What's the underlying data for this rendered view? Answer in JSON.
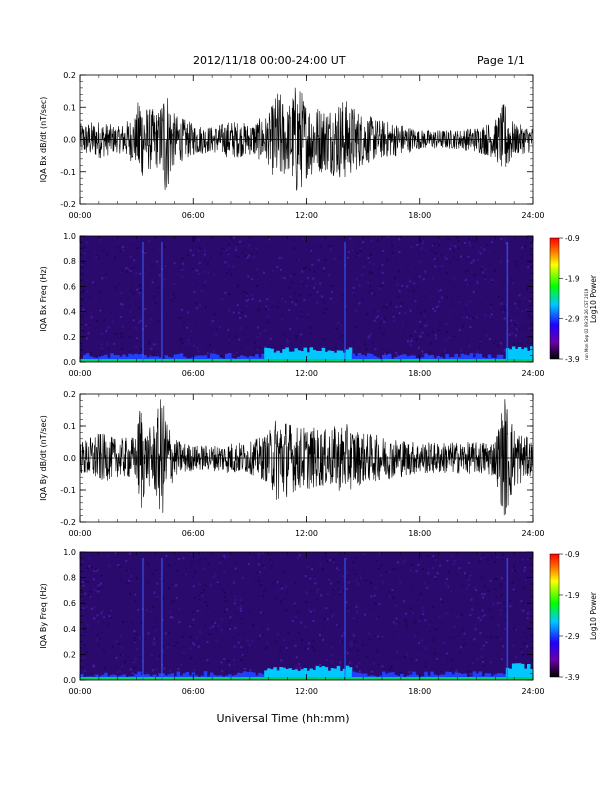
{
  "header": {
    "title": "2012/11/18  00:00-24:00 UT",
    "page": "Page 1/1"
  },
  "side_note": "run Mon Sep 02 09:29:26 CST 2019",
  "xaxis_label": "Universal Time (hh:mm)",
  "colors": {
    "trace": "#000000",
    "spectrogram_bg": "#2b0a6e",
    "colorbar": [
      "#000000",
      "#6a00a8",
      "#1f00ff",
      "#00c8ff",
      "#00ff00",
      "#ffff00",
      "#ff8000",
      "#ff0000"
    ]
  },
  "chart_data": [
    {
      "type": "line",
      "ylabel": "IQA Bx dB/dt (nT/sec)",
      "x_ticks": [
        "00:00",
        "06:00",
        "12:00",
        "18:00",
        "24:00"
      ],
      "xlim": [
        0,
        24
      ],
      "ylim": [
        -0.2,
        0.2
      ],
      "y_ticks": [
        "0.2",
        "0.1",
        "0.0",
        "-0.1",
        "-0.2"
      ],
      "envelope": {
        "x": [
          0,
          1,
          2,
          3,
          3.2,
          3.3,
          3.6,
          4.2,
          4.5,
          5,
          6,
          7,
          8,
          9,
          10,
          10.5,
          11,
          11.5,
          12,
          13,
          14,
          15,
          16,
          17,
          18,
          19,
          20,
          21,
          22,
          22.5,
          23,
          24
        ],
        "amplitude": [
          0.05,
          0.06,
          0.04,
          0.08,
          0.2,
          0.12,
          0.1,
          0.09,
          0.19,
          0.08,
          0.05,
          0.04,
          0.06,
          0.05,
          0.08,
          0.16,
          0.1,
          0.19,
          0.12,
          0.1,
          0.13,
          0.08,
          0.06,
          0.05,
          0.03,
          0.03,
          0.03,
          0.04,
          0.06,
          0.12,
          0.05,
          0.04
        ]
      }
    },
    {
      "type": "heatmap",
      "ylabel": "IQA Bx Freq (Hz)",
      "x_ticks": [
        "00:00",
        "06:00",
        "12:00",
        "18:00",
        "24:00"
      ],
      "xlim": [
        0,
        24
      ],
      "ylim": [
        0.0,
        1.0
      ],
      "y_ticks": [
        "1.0",
        "0.8",
        "0.6",
        "0.4",
        "0.2",
        "0.0"
      ],
      "colorbar_label": "Log10 Power",
      "colorbar_ticks": [
        "-0.9",
        "-1.9",
        "-2.9",
        "-3.9"
      ],
      "crange": [
        -3.9,
        -0.9
      ]
    },
    {
      "type": "line",
      "ylabel": "IQA By dB/dt (nT/sec)",
      "x_ticks": [
        "00:00",
        "06:00",
        "12:00",
        "18:00",
        "24:00"
      ],
      "xlim": [
        0,
        24
      ],
      "ylim": [
        -0.2,
        0.2
      ],
      "y_ticks": [
        "0.2",
        "0.1",
        "0.0",
        "-0.1",
        "-0.2"
      ],
      "envelope": {
        "x": [
          0,
          1,
          2,
          3,
          3.2,
          3.5,
          4,
          4.3,
          4.6,
          5,
          6,
          7,
          8,
          9,
          10,
          10.5,
          11,
          11.5,
          12,
          13,
          14,
          15,
          16,
          17,
          18,
          19,
          20,
          21,
          22,
          22.5,
          23,
          24
        ],
        "amplitude": [
          0.05,
          0.08,
          0.06,
          0.07,
          0.2,
          0.08,
          0.12,
          0.2,
          0.14,
          0.06,
          0.04,
          0.04,
          0.05,
          0.05,
          0.08,
          0.15,
          0.12,
          0.1,
          0.1,
          0.09,
          0.11,
          0.08,
          0.07,
          0.06,
          0.05,
          0.05,
          0.05,
          0.05,
          0.06,
          0.2,
          0.1,
          0.05
        ]
      }
    },
    {
      "type": "heatmap",
      "ylabel": "IQA By Freq (Hz)",
      "x_ticks": [
        "00:00",
        "06:00",
        "12:00",
        "18:00",
        "24:00"
      ],
      "xlim": [
        0,
        24
      ],
      "ylim": [
        0.0,
        1.0
      ],
      "y_ticks": [
        "1.0",
        "0.8",
        "0.6",
        "0.4",
        "0.2",
        "0.0"
      ],
      "colorbar_label": "Log10 Power",
      "colorbar_ticks": [
        "-0.9",
        "-1.9",
        "-2.9",
        "-3.9"
      ],
      "crange": [
        -3.9,
        -0.9
      ]
    }
  ]
}
